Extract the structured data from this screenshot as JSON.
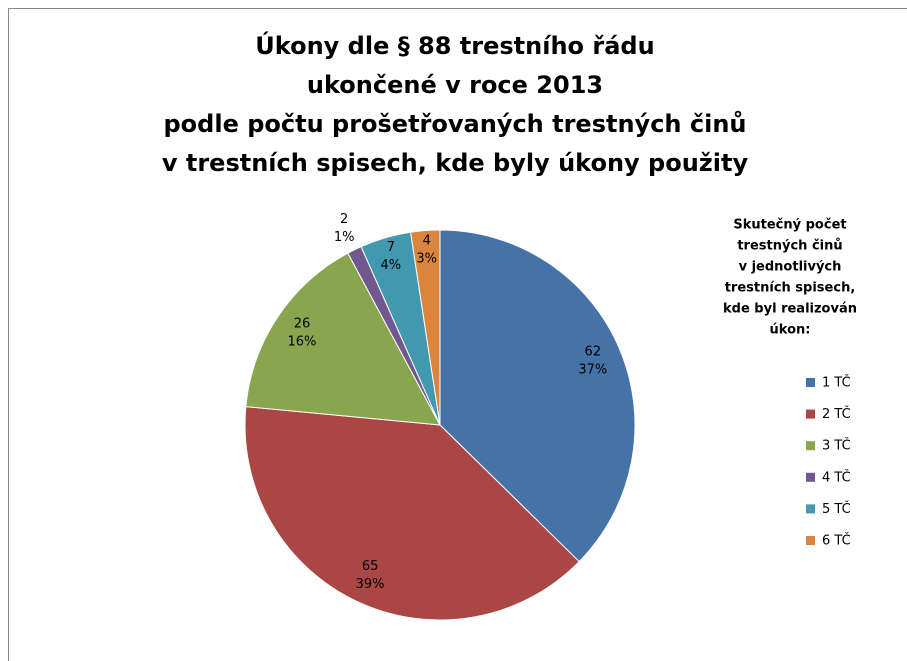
{
  "chart_data": {
    "type": "pie",
    "title": [
      "Úkony dle § 88 trestního řádu",
      "ukončené v roce 2013",
      "podle počtu prošetřovaných trestných činů",
      "v trestních spisech, kde byly úkony použity"
    ],
    "legend_title": [
      "Skutečný počet",
      "trestných činů",
      "v jednotlivých",
      "trestních spisech,",
      "kde byl realizován",
      "úkon:"
    ],
    "categories": [
      "1 TČ",
      "2 TČ",
      "3 TČ",
      "4 TČ",
      "5 TČ",
      "6 TČ"
    ],
    "values": [
      62,
      65,
      26,
      2,
      7,
      4
    ],
    "percent_labels": [
      "37%",
      "39%",
      "16%",
      "1%",
      "4%",
      "3%"
    ],
    "colors": [
      "#4572a7",
      "#aa4643",
      "#89a54e",
      "#71588f",
      "#4198af",
      "#db843d"
    ],
    "legend": "right"
  }
}
